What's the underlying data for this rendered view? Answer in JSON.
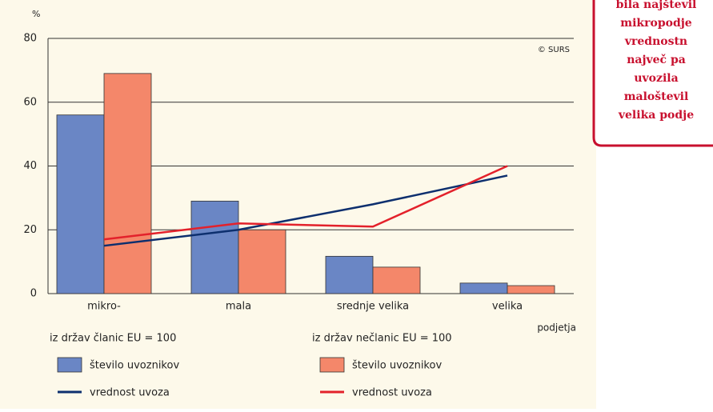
{
  "chart_data": {
    "type": "bar",
    "y_unit": "%",
    "source": "© SURS",
    "x_label": "podjetja",
    "categories": [
      "mikro-",
      "mala",
      "srednje velika",
      "velika"
    ],
    "ylim": [
      0,
      80
    ],
    "yticks": [
      0,
      20,
      40,
      60,
      80
    ],
    "grid": true,
    "groups": [
      "iz držav članic EU = 100",
      "iz držav nečlanic EU = 100"
    ],
    "series": [
      {
        "name": "število uvoznikov",
        "type": "bar",
        "group": 0,
        "color": "#6a86c5",
        "values": [
          56,
          29,
          11.7,
          3.3
        ]
      },
      {
        "name": "število uvoznikov",
        "type": "bar",
        "group": 1,
        "color": "#f4876a",
        "values": [
          69,
          20,
          8.3,
          2.5
        ]
      },
      {
        "name": "vrednost uvoza",
        "type": "line",
        "group": 0,
        "color": "#0d2f6e",
        "values": [
          15,
          20,
          28,
          37
        ]
      },
      {
        "name": "vrednost uvoza",
        "type": "line",
        "group": 1,
        "color": "#e3212b",
        "values": [
          17,
          22,
          21,
          40
        ]
      }
    ]
  },
  "callout": {
    "lines": [
      "bila najštevil",
      "mikropodje",
      "vrednostn",
      "največ pa",
      "uvozila",
      "maloštevil",
      "velika podje"
    ]
  }
}
